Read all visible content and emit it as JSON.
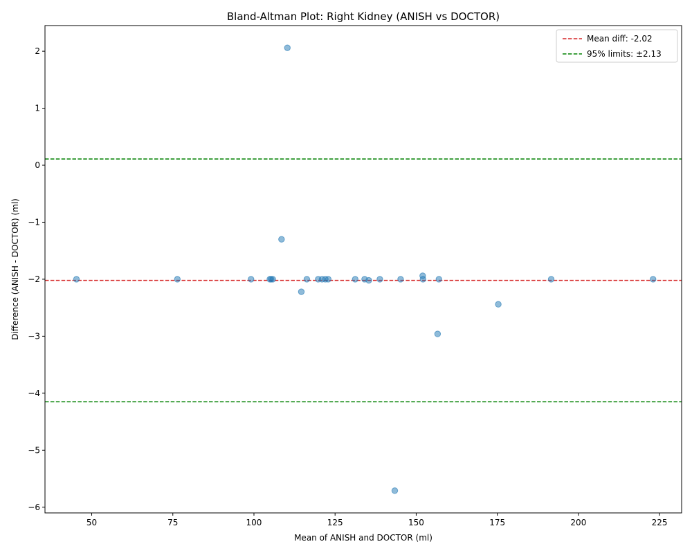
{
  "chart_data": {
    "type": "scatter",
    "title": "Bland-Altman Plot: Right Kidney (ANISH vs DOCTOR)",
    "xlabel": "Mean of ANISH and DOCTOR (ml)",
    "ylabel": "Difference (ANISH - DOCTOR) (ml)",
    "xlim": [
      35.6,
      231.8
    ],
    "ylim": [
      -6.1,
      2.45
    ],
    "x_ticks": [
      50,
      75,
      100,
      125,
      150,
      175,
      200,
      225
    ],
    "y_ticks": [
      2,
      1,
      0,
      -1,
      -2,
      -3,
      -4,
      -5,
      -6
    ],
    "x_tick_labels": [
      "50",
      "75",
      "100",
      "125",
      "150",
      "175",
      "200",
      "225"
    ],
    "y_tick_labels": [
      "2",
      "1",
      "0",
      "−1",
      "−2",
      "−3",
      "−4",
      "−5",
      "−6"
    ],
    "points": {
      "color": "#1f77b4",
      "x": [
        45.3,
        76.4,
        99.1,
        104.9,
        105.3,
        105.8,
        108.5,
        110.3,
        114.6,
        116.3,
        119.8,
        121.0,
        122.0,
        122.9,
        131.2,
        134.1,
        135.4,
        138.8,
        145.2,
        143.4,
        152.0,
        152.1,
        157.0,
        156.6,
        175.3,
        191.6,
        223.0
      ],
      "y": [
        -2.0,
        -2.0,
        -2.0,
        -2.0,
        -2.0,
        -2.0,
        -1.3,
        2.06,
        -2.22,
        -2.0,
        -2.0,
        -2.0,
        -2.0,
        -2.0,
        -2.0,
        -2.0,
        -2.02,
        -2.0,
        -2.0,
        -5.71,
        -1.94,
        -2.0,
        -2.0,
        -2.96,
        -2.44,
        -2.0,
        -2.0
      ]
    },
    "lines": [
      {
        "name": "Mean diff: -2.02",
        "y": -2.02,
        "color": "#d62728"
      },
      {
        "name": "95% limits: ±2.13",
        "y": 0.11,
        "color": "#008000"
      },
      {
        "name": "",
        "y": -4.15,
        "color": "#008000"
      }
    ],
    "legend": {
      "placement": "top-right",
      "entries": [
        "Mean diff: -2.02",
        "95% limits: ±2.13"
      ]
    },
    "grid": false
  }
}
